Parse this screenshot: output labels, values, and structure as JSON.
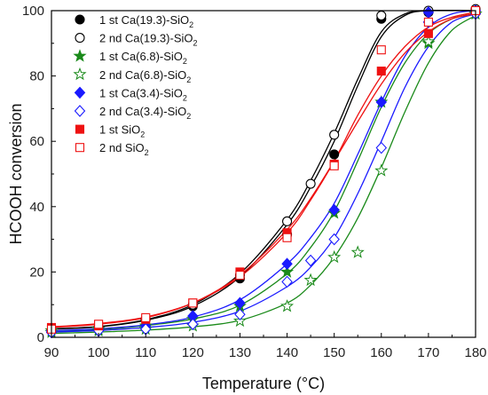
{
  "chart_data": {
    "type": "scatter",
    "title": "",
    "xlabel": "Temperature (°C)",
    "ylabel": "HCOOH conversion",
    "xlim": [
      90,
      180
    ],
    "ylim": [
      0,
      100
    ],
    "xticks": [
      90,
      100,
      110,
      120,
      130,
      140,
      150,
      160,
      170,
      180
    ],
    "yticks": [
      0,
      20,
      40,
      60,
      80,
      100
    ],
    "grid": false,
    "legend_position": "top-left",
    "series": [
      {
        "name": "1 st Ca(19.3)-SiO2",
        "color": "#000000",
        "marker": "circle",
        "filled": true,
        "x": [
          90,
          100,
          110,
          120,
          130,
          140,
          150,
          160,
          170,
          180
        ],
        "y": [
          2,
          3,
          5.5,
          9.5,
          18,
          31.5,
          56,
          97.5,
          99.5,
          100
        ],
        "fit": [
          [
            90,
            2.5
          ],
          [
            100,
            3.2
          ],
          [
            110,
            5.2
          ],
          [
            120,
            9.5
          ],
          [
            130,
            18.5
          ],
          [
            140,
            34.5
          ],
          [
            145,
            46
          ],
          [
            150,
            60
          ],
          [
            155,
            77
          ],
          [
            160,
            92
          ],
          [
            165,
            98.5
          ],
          [
            170,
            100
          ],
          [
            180,
            100
          ]
        ]
      },
      {
        "name": "2 nd Ca(19.3)-SiO2",
        "color": "#000000",
        "marker": "circle",
        "filled": false,
        "x": [
          90,
          100,
          110,
          120,
          130,
          140,
          145,
          150,
          160,
          170,
          180
        ],
        "y": [
          2.2,
          3,
          5.5,
          10,
          19,
          35.5,
          47,
          62,
          98.5,
          100,
          100.5
        ],
        "fit": [
          [
            90,
            2.6
          ],
          [
            100,
            3.3
          ],
          [
            110,
            5.4
          ],
          [
            120,
            10
          ],
          [
            130,
            19.5
          ],
          [
            140,
            36
          ],
          [
            145,
            48
          ],
          [
            150,
            62.5
          ],
          [
            155,
            79
          ],
          [
            160,
            93.5
          ],
          [
            165,
            99
          ],
          [
            170,
            100
          ],
          [
            180,
            100
          ]
        ]
      },
      {
        "name": "1 st Ca(6.8)-SiO2",
        "color": "#1a8a1a",
        "marker": "star",
        "filled": true,
        "x": [
          90,
          100,
          110,
          120,
          130,
          140,
          150,
          160,
          170,
          180
        ],
        "y": [
          2,
          2.5,
          3.5,
          5.5,
          9.5,
          20,
          38,
          72,
          90,
          99
        ],
        "fit": [
          [
            90,
            1.8
          ],
          [
            100,
            2.4
          ],
          [
            110,
            3.6
          ],
          [
            120,
            5.6
          ],
          [
            130,
            9.8
          ],
          [
            140,
            19.5
          ],
          [
            145,
            27.5
          ],
          [
            150,
            38.5
          ],
          [
            155,
            54
          ],
          [
            160,
            70.5
          ],
          [
            165,
            84
          ],
          [
            170,
            93
          ],
          [
            175,
            97.5
          ],
          [
            180,
            99
          ]
        ]
      },
      {
        "name": "2 nd Ca(6.8)-SiO2",
        "color": "#1a8a1a",
        "marker": "star",
        "filled": false,
        "x": [
          90,
          100,
          110,
          120,
          130,
          140,
          145,
          150,
          155,
          160,
          170,
          180
        ],
        "y": [
          1.5,
          2,
          2.5,
          3.5,
          5,
          9.5,
          17.5,
          24.5,
          26,
          51,
          90.5,
          99
        ],
        "fit": [
          [
            90,
            1.2
          ],
          [
            100,
            1.6
          ],
          [
            110,
            2.2
          ],
          [
            120,
            3.2
          ],
          [
            130,
            5.2
          ],
          [
            140,
            10.5
          ],
          [
            145,
            16
          ],
          [
            150,
            24.5
          ],
          [
            155,
            36.5
          ],
          [
            160,
            52
          ],
          [
            165,
            69
          ],
          [
            170,
            84
          ],
          [
            175,
            94
          ],
          [
            180,
            98.5
          ]
        ]
      },
      {
        "name": "1 st Ca(3.4)-SiO2",
        "color": "#1a1aff",
        "marker": "diamond",
        "filled": true,
        "x": [
          90,
          100,
          110,
          120,
          130,
          140,
          150,
          160,
          170,
          180
        ],
        "y": [
          2,
          2.5,
          3.5,
          6.5,
          10.5,
          22.5,
          39,
          72,
          99.5,
          100
        ],
        "fit": [
          [
            90,
            2
          ],
          [
            100,
            2.6
          ],
          [
            110,
            3.8
          ],
          [
            120,
            6.2
          ],
          [
            130,
            11.5
          ],
          [
            140,
            22.5
          ],
          [
            145,
            30.5
          ],
          [
            150,
            41
          ],
          [
            155,
            56
          ],
          [
            160,
            72
          ],
          [
            165,
            86
          ],
          [
            170,
            95
          ],
          [
            175,
            99
          ],
          [
            180,
            100
          ]
        ]
      },
      {
        "name": "2 nd Ca(3.4)-SiO2",
        "color": "#1a1aff",
        "marker": "diamond",
        "filled": false,
        "x": [
          90,
          100,
          110,
          120,
          130,
          140,
          145,
          150,
          160,
          170,
          180
        ],
        "y": [
          1.5,
          2,
          2.5,
          4,
          7,
          17,
          23.5,
          30,
          58,
          96.5,
          99
        ],
        "fit": [
          [
            90,
            1.6
          ],
          [
            100,
            2.1
          ],
          [
            110,
            3
          ],
          [
            120,
            4.6
          ],
          [
            130,
            8
          ],
          [
            140,
            15.5
          ],
          [
            145,
            21.5
          ],
          [
            150,
            30.5
          ],
          [
            155,
            44
          ],
          [
            160,
            60
          ],
          [
            165,
            76.5
          ],
          [
            170,
            89
          ],
          [
            175,
            96.5
          ],
          [
            180,
            99
          ]
        ]
      },
      {
        "name": "1 st SiO2",
        "color": "#ee1111",
        "marker": "square",
        "filled": true,
        "x": [
          90,
          100,
          110,
          120,
          130,
          140,
          150,
          160,
          170,
          180
        ],
        "y": [
          3,
          3.5,
          5.5,
          10.5,
          20,
          32,
          53,
          81.5,
          93,
          100
        ],
        "fit": [
          [
            90,
            3
          ],
          [
            100,
            4
          ],
          [
            110,
            6
          ],
          [
            120,
            10.5
          ],
          [
            130,
            19
          ],
          [
            140,
            33
          ],
          [
            145,
            42.5
          ],
          [
            150,
            54
          ],
          [
            155,
            66
          ],
          [
            160,
            77.5
          ],
          [
            165,
            87
          ],
          [
            170,
            93.5
          ],
          [
            175,
            97.5
          ],
          [
            180,
            99
          ]
        ]
      },
      {
        "name": "2 nd SiO2",
        "color": "#ee1111",
        "marker": "square",
        "filled": false,
        "x": [
          90,
          100,
          110,
          120,
          130,
          140,
          150,
          160,
          170,
          180
        ],
        "y": [
          2.5,
          4,
          6,
          10.5,
          19,
          30.5,
          52.5,
          88,
          96.5,
          100
        ],
        "fit": [
          [
            90,
            3.2
          ],
          [
            100,
            4.2
          ],
          [
            110,
            6.2
          ],
          [
            120,
            10.5
          ],
          [
            130,
            18.5
          ],
          [
            140,
            32
          ],
          [
            145,
            42
          ],
          [
            150,
            54
          ],
          [
            155,
            68
          ],
          [
            160,
            80
          ],
          [
            165,
            89
          ],
          [
            170,
            95
          ],
          [
            175,
            98
          ],
          [
            180,
            99.5
          ]
        ]
      }
    ]
  }
}
